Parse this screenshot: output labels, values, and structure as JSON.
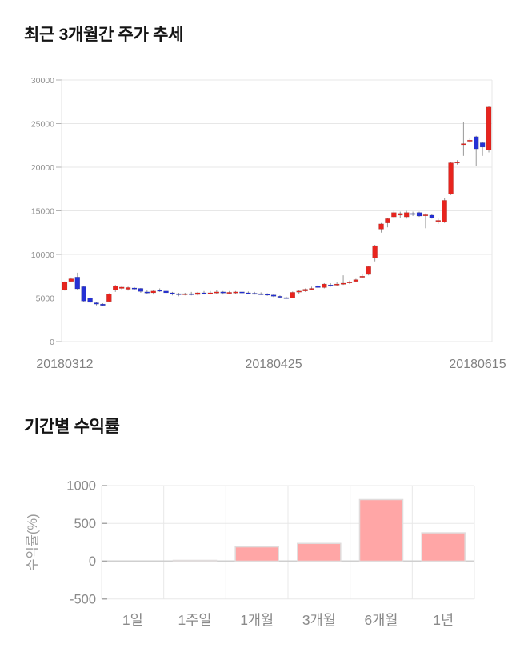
{
  "chart_data": [
    {
      "type": "candlestick",
      "title": "최근 3개월간 주가 추세",
      "xlabel": "",
      "ylabel": "",
      "ylim": [
        0,
        30000
      ],
      "y_ticks": [
        0,
        5000,
        10000,
        15000,
        20000,
        25000,
        30000
      ],
      "x_ticks": [
        {
          "label": "20180312",
          "index": 0
        },
        {
          "label": "20180425",
          "index": 33
        },
        {
          "label": "20180615",
          "index": 67
        }
      ],
      "grid": "horizontal",
      "up_color": "#e8241e",
      "down_color": "#2531d4",
      "candles_ohlc": [
        [
          5950,
          6900,
          5850,
          6800
        ],
        [
          6900,
          7350,
          6800,
          7200
        ],
        [
          7400,
          7900,
          5950,
          6050
        ],
        [
          6300,
          6400,
          4500,
          4650
        ],
        [
          5000,
          5100,
          4400,
          4500
        ],
        [
          4450,
          4550,
          4150,
          4300
        ],
        [
          4300,
          4400,
          4050,
          4150
        ],
        [
          4600,
          5550,
          4500,
          5450
        ],
        [
          5900,
          6500,
          5700,
          6350
        ],
        [
          6100,
          6400,
          5950,
          6250
        ],
        [
          6000,
          6300,
          5850,
          6200
        ],
        [
          6150,
          6250,
          5900,
          6050
        ],
        [
          6100,
          6150,
          5600,
          5750
        ],
        [
          5700,
          5900,
          5500,
          5600
        ],
        [
          5600,
          5900,
          5400,
          5800
        ],
        [
          5900,
          6100,
          5700,
          5800
        ],
        [
          5800,
          5900,
          5500,
          5600
        ],
        [
          5600,
          5700,
          5300,
          5500
        ],
        [
          5500,
          5600,
          5200,
          5400
        ],
        [
          5400,
          5600,
          5300,
          5500
        ],
        [
          5500,
          5700,
          5300,
          5400
        ],
        [
          5400,
          5700,
          5300,
          5600
        ],
        [
          5600,
          5800,
          5400,
          5500
        ],
        [
          5500,
          5800,
          5400,
          5600
        ],
        [
          5600,
          5900,
          5500,
          5700
        ],
        [
          5700,
          5800,
          5400,
          5600
        ],
        [
          5600,
          5800,
          5500,
          5650
        ],
        [
          5600,
          5800,
          5500,
          5700
        ],
        [
          5700,
          5900,
          5500,
          5600
        ],
        [
          5600,
          5750,
          5450,
          5550
        ],
        [
          5550,
          5700,
          5400,
          5500
        ],
        [
          5500,
          5650,
          5350,
          5450
        ],
        [
          5450,
          5550,
          5250,
          5350
        ],
        [
          5350,
          5450,
          5100,
          5200
        ],
        [
          5200,
          5300,
          4950,
          5100
        ],
        [
          5050,
          5150,
          4900,
          5000
        ],
        [
          5000,
          5750,
          5000,
          5650
        ],
        [
          5700,
          5900,
          5500,
          5800
        ],
        [
          5800,
          6100,
          5700,
          6000
        ],
        [
          6000,
          6300,
          5900,
          6100
        ],
        [
          6400,
          6500,
          6100,
          6200
        ],
        [
          6200,
          6700,
          6100,
          6600
        ],
        [
          6500,
          6700,
          6300,
          6450
        ],
        [
          6500,
          6800,
          6400,
          6600
        ],
        [
          6600,
          7600,
          6500,
          6700
        ],
        [
          6750,
          7000,
          6600,
          6850
        ],
        [
          6900,
          7200,
          6800,
          7100
        ],
        [
          7400,
          7700,
          7300,
          7500
        ],
        [
          7700,
          8700,
          7600,
          8600
        ],
        [
          9600,
          11100,
          9200,
          11000
        ],
        [
          12900,
          13600,
          12500,
          13500
        ],
        [
          13600,
          14200,
          13100,
          14100
        ],
        [
          14300,
          15000,
          14200,
          14800
        ],
        [
          14500,
          14900,
          14200,
          14700
        ],
        [
          14300,
          15000,
          14100,
          14800
        ],
        [
          14700,
          14900,
          14400,
          14600
        ],
        [
          14800,
          14900,
          14300,
          14400
        ],
        [
          14450,
          14700,
          13000,
          14550
        ],
        [
          14500,
          14600,
          14100,
          14200
        ],
        [
          13800,
          14100,
          13500,
          13900
        ],
        [
          13700,
          16500,
          13600,
          16200
        ],
        [
          16900,
          20600,
          16800,
          20500
        ],
        [
          20500,
          20800,
          20300,
          20600
        ],
        [
          22600,
          25200,
          21300,
          22700
        ],
        [
          23000,
          23300,
          22800,
          23100
        ],
        [
          23500,
          23600,
          20100,
          22100
        ],
        [
          22800,
          22900,
          21300,
          22300
        ],
        [
          22000,
          27000,
          21700,
          26900
        ]
      ]
    },
    {
      "type": "bar",
      "title": "기간별 수익률",
      "xlabel": "",
      "ylabel": "수익률(%)",
      "categories": [
        "1일",
        "1주일",
        "1개월",
        "3개월",
        "6개월",
        "1년"
      ],
      "values": [
        0,
        8,
        190,
        235,
        815,
        375
      ],
      "ylim": [
        -500,
        1000
      ],
      "y_ticks": [
        -500,
        0,
        500,
        1000
      ],
      "grid": "both",
      "legend": "none",
      "bar_color": "#ffa6a6",
      "bar_border": "#e0dcdc"
    }
  ]
}
